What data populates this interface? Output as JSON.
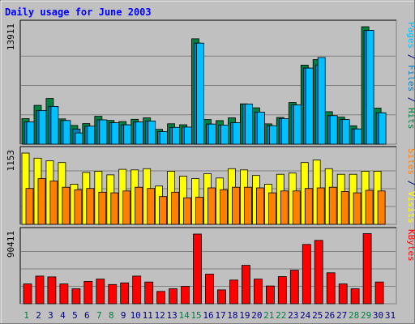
{
  "chart_data": {
    "type": "bar",
    "title": "Daily usage for June 2003",
    "colors": {
      "background": "#c0c0c0",
      "border": "#808080",
      "title": "#0000ff",
      "hits": "#008040",
      "files": "#0080c0",
      "pages": "#00c0ff",
      "visits": "#ffff00",
      "sites": "#ff8000",
      "kbytes": "#ff0000",
      "weekend": "#008040",
      "weekday": "#000080"
    },
    "x": [
      "1",
      "2",
      "3",
      "4",
      "5",
      "6",
      "7",
      "8",
      "9",
      "10",
      "11",
      "12",
      "13",
      "14",
      "15",
      "16",
      "17",
      "18",
      "19",
      "20",
      "21",
      "22",
      "23",
      "24",
      "25",
      "26",
      "27",
      "28",
      "29",
      "30",
      "31"
    ],
    "weekend_days": [
      "1",
      "7",
      "8",
      "14",
      "15",
      "21",
      "22",
      "28",
      "29"
    ],
    "panels": [
      {
        "name": "hits",
        "y_max_label": "13911",
        "ylim": [
          0,
          13911
        ],
        "right_labels": [
          {
            "text": "Pages",
            "color": "#00c0ff"
          },
          {
            "text": " / ",
            "color": "#000080"
          },
          {
            "text": "Files",
            "color": "#0080c0"
          },
          {
            "text": " / ",
            "color": "#000080"
          },
          {
            "text": "Hits",
            "color": "#008040"
          }
        ],
        "series": [
          {
            "name": "Hits",
            "color": "#008040",
            "values": [
              3030,
              4600,
              5410,
              2990,
              2220,
              2440,
              3300,
              2810,
              2680,
              2950,
              3120,
              1760,
              2420,
              2300,
              12480,
              2920,
              2790,
              3120,
              4780,
              4310,
              2410,
              3170,
              4930,
              9360,
              10020,
              3850,
              3200,
              2180,
              13911,
              4270,
              0
            ]
          },
          {
            "name": "Files",
            "color": "#0080c0",
            "values": [
              2640,
              3990,
              4470,
              2800,
              1790,
              2130,
              2880,
              2530,
              2290,
              2630,
              2740,
              1490,
              1990,
              2020,
              11970,
              2380,
              2260,
              2540,
              4760,
              3800,
              2190,
              3030,
              4650,
              9010,
              9370,
              3380,
              2920,
              1800,
              13480,
              3720,
              0
            ]
          },
          {
            "name": "Pages",
            "color": "#00c0ff",
            "values": [
              2640,
              3990,
              4470,
              2800,
              1320,
              2130,
              2880,
              2530,
              2290,
              2630,
              2740,
              1490,
              1990,
              2020,
              11970,
              2380,
              2260,
              2540,
              4760,
              3800,
              2190,
              3030,
              4650,
              9010,
              10270,
              3380,
              2920,
              1800,
              13480,
              3720,
              0
            ]
          }
        ]
      },
      {
        "name": "visits",
        "y_max_label": "1153",
        "ylim": [
          0,
          1153
        ],
        "right_labels": [
          {
            "text": "Sites",
            "color": "#ff8000"
          },
          {
            "text": " / ",
            "color": "#000080"
          },
          {
            "text": "Visits",
            "color": "#ffff00"
          }
        ],
        "series": [
          {
            "name": "Visits",
            "color": "#ffff00",
            "values": [
              1153,
              1070,
              1030,
              1000,
              650,
              840,
              860,
              800,
              890,
              880,
              900,
              620,
              860,
              780,
              740,
              820,
              750,
              900,
              880,
              790,
              650,
              810,
              830,
              1000,
              1040,
              900,
              810,
              810,
              860,
              860,
              0
            ]
          },
          {
            "name": "Sites",
            "color": "#ff8000",
            "values": [
              580,
              740,
              700,
              600,
              560,
              580,
              520,
              510,
              540,
              600,
              580,
              450,
              520,
              430,
              440,
              590,
              560,
              600,
              600,
              590,
              510,
              540,
              540,
              580,
              590,
              600,
              530,
              510,
              550,
              540,
              0
            ]
          }
        ]
      },
      {
        "name": "kbytes",
        "y_max_label": "90411",
        "ylim": [
          0,
          90411
        ],
        "right_labels": [
          {
            "text": "KBytes",
            "color": "#ff0000"
          }
        ],
        "series": [
          {
            "name": "KBytes",
            "color": "#ff0000",
            "values": [
              25600,
              35800,
              34800,
              25600,
              19300,
              29000,
              32000,
              24900,
              27000,
              35800,
              28200,
              16000,
              19300,
              22500,
              90411,
              38400,
              18000,
              30700,
              49800,
              32000,
              23000,
              35200,
              43500,
              77000,
              82200,
              40200,
              25600,
              19300,
              91000,
              28200,
              0
            ]
          }
        ]
      }
    ]
  }
}
